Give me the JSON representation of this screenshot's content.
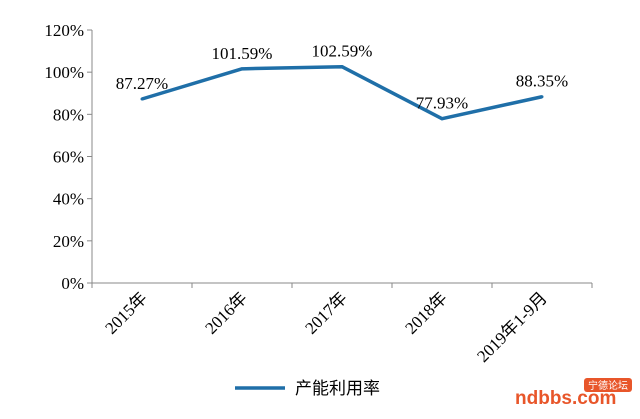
{
  "chart_data": {
    "type": "line",
    "categories": [
      "2015年",
      "2016年",
      "2017年",
      "2018年",
      "2019年1-9月"
    ],
    "series": [
      {
        "name": "产能利用率",
        "values": [
          87.27,
          101.59,
          102.59,
          77.93,
          88.35
        ],
        "labels": [
          "87.27%",
          "101.59%",
          "102.59%",
          "77.93%",
          "88.35%"
        ],
        "color": "#1f6fa8"
      }
    ],
    "ylim": [
      0,
      120
    ],
    "yticks": [
      "0%",
      "20%",
      "40%",
      "60%",
      "80%",
      "100%",
      "120%"
    ],
    "grid": false,
    "legend_position": "bottom"
  },
  "watermark": {
    "text": "ndbbs.com",
    "badge": "宁德论坛",
    "color": "#e8562a"
  }
}
